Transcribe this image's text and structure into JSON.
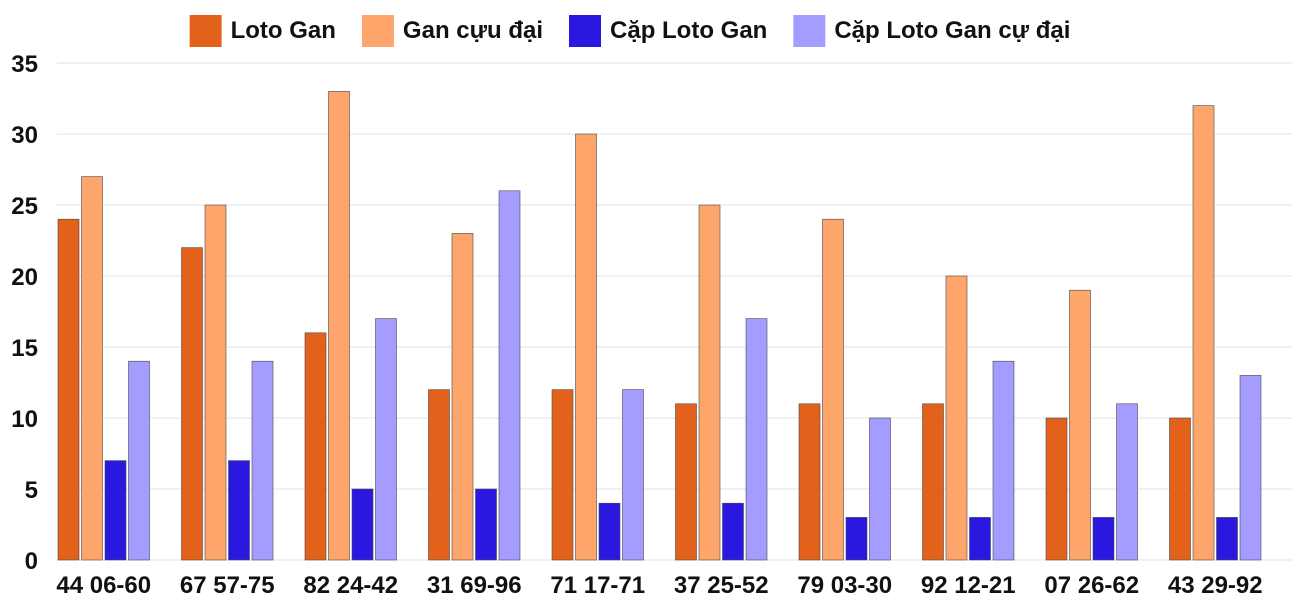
{
  "chart_data": {
    "type": "bar",
    "title": "",
    "xlabel": "",
    "ylabel": "",
    "ylim": [
      0,
      35
    ],
    "yticks": [
      0,
      5,
      10,
      15,
      20,
      25,
      30,
      35
    ],
    "grid": true,
    "legend_position": "top-center",
    "categories": [
      "44 06-60",
      "67 57-75",
      "82 24-42",
      "31 69-96",
      "71 17-71",
      "37 25-52",
      "79 03-30",
      "92 12-21",
      "07 26-62",
      "43 29-92"
    ],
    "series": [
      {
        "name": "Loto Gan",
        "color": "#e2621b",
        "values": [
          24,
          22,
          16,
          12,
          12,
          11,
          11,
          11,
          10,
          10
        ]
      },
      {
        "name": "Gan cựu đại",
        "color": "#fda56b",
        "values": [
          27,
          25,
          33,
          23,
          30,
          25,
          24,
          20,
          19,
          32
        ]
      },
      {
        "name": "Cặp Loto Gan",
        "color": "#2a17e0",
        "values": [
          7,
          7,
          5,
          5,
          4,
          4,
          3,
          3,
          3,
          3
        ]
      },
      {
        "name": "Cặp Loto Gan cự đại",
        "color": "#a59cff",
        "values": [
          14,
          14,
          17,
          26,
          12,
          17,
          10,
          14,
          11,
          13
        ]
      }
    ]
  }
}
